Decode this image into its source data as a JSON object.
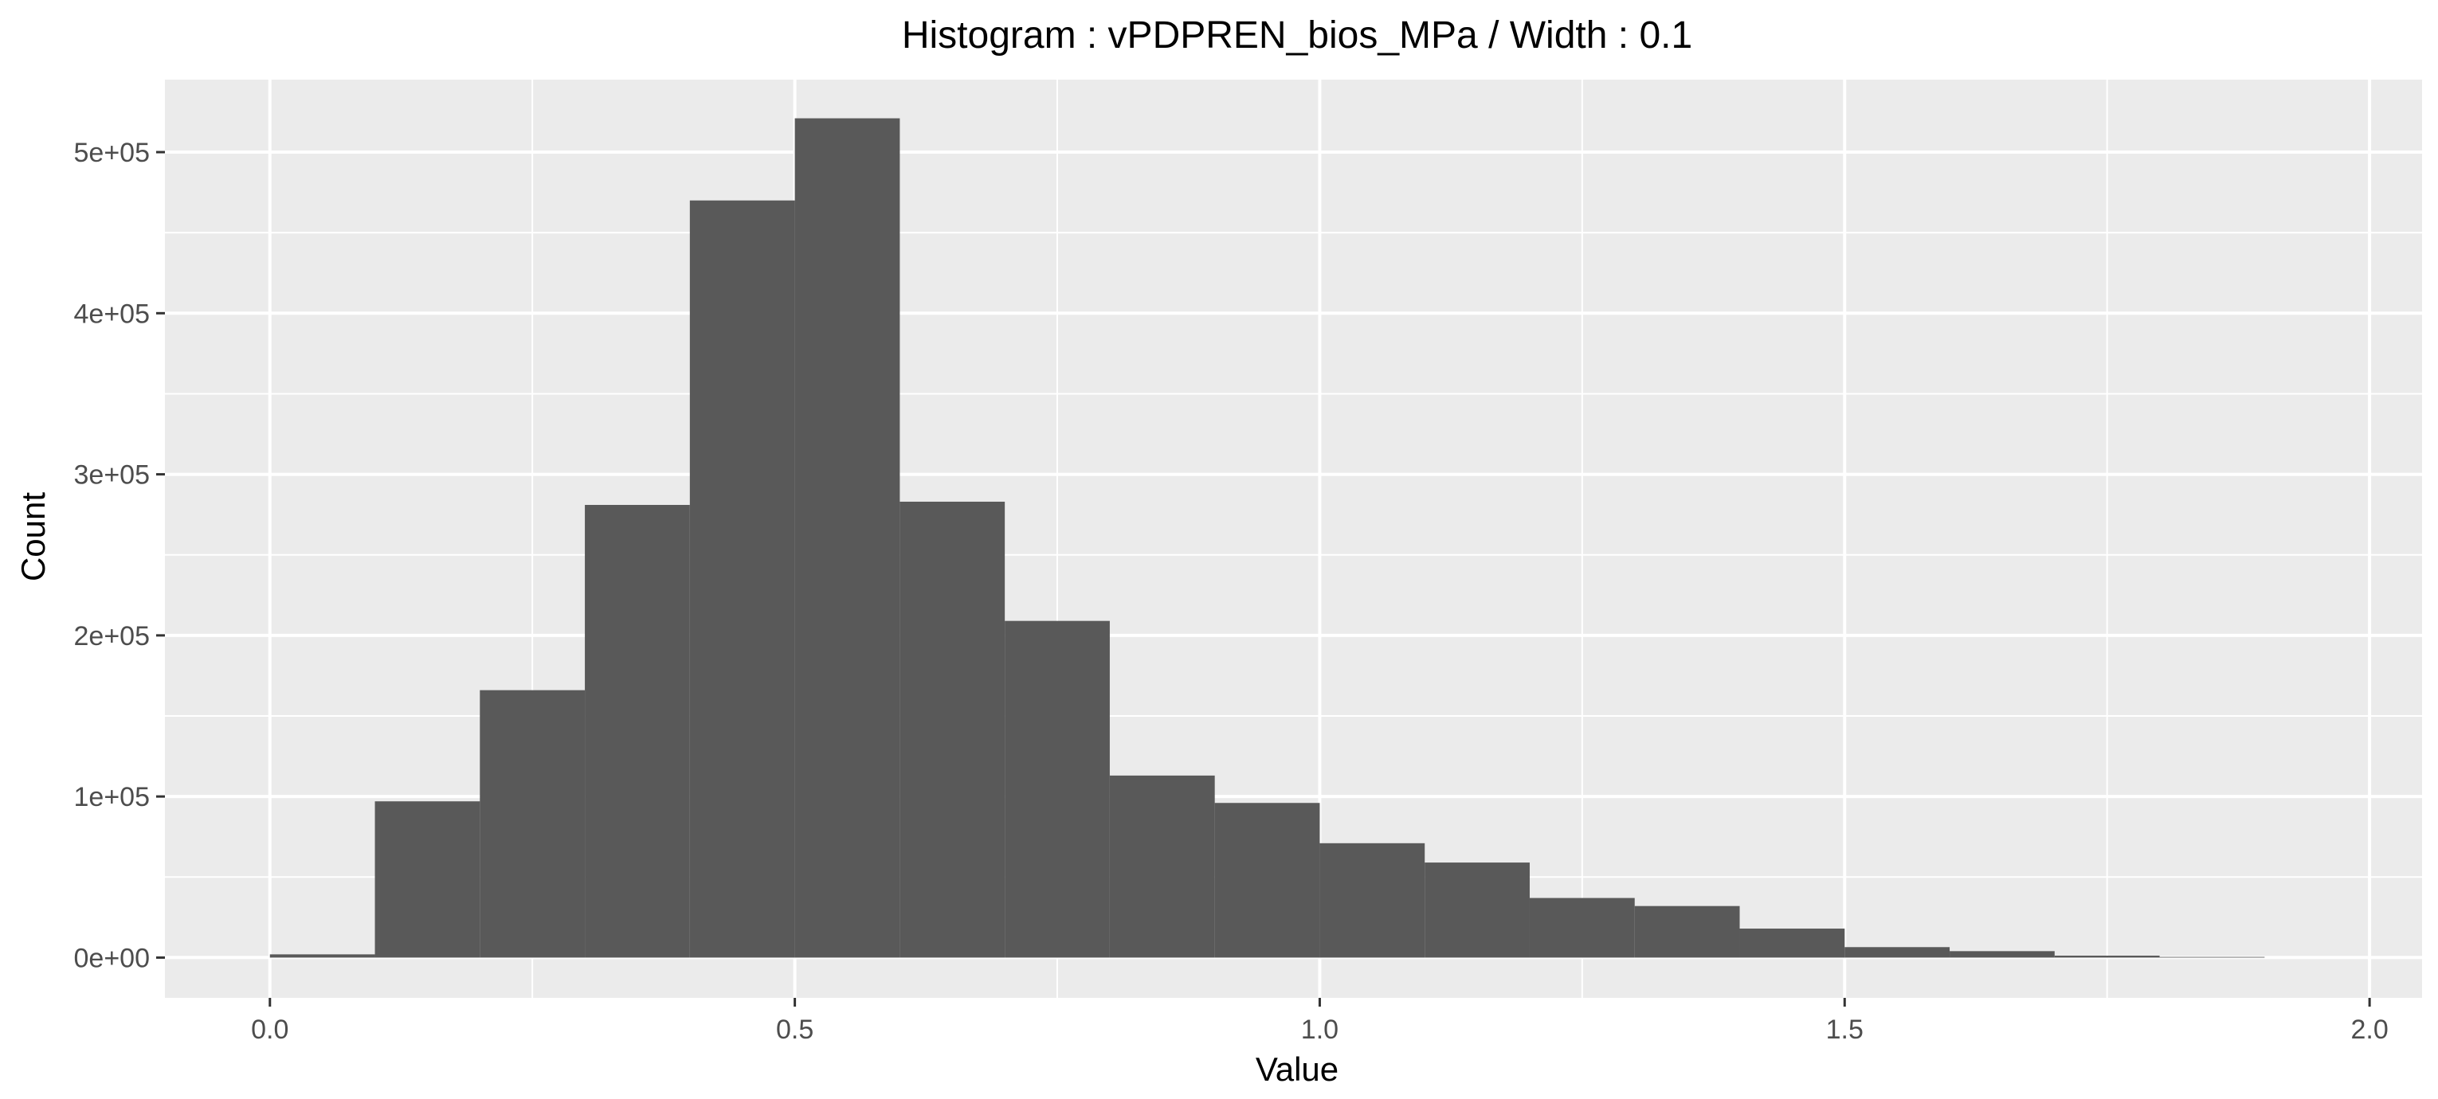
{
  "chart_data": {
    "type": "bar",
    "title": "Histogram : vPDPREN_bios_MPa / Width : 0.1",
    "xlabel": "Value",
    "ylabel": "Count",
    "bin_width": 0.1,
    "bins": [
      {
        "start": 0.0,
        "end": 0.1,
        "count": 2000
      },
      {
        "start": 0.1,
        "end": 0.2,
        "count": 97000
      },
      {
        "start": 0.2,
        "end": 0.3,
        "count": 166000
      },
      {
        "start": 0.3,
        "end": 0.4,
        "count": 281000
      },
      {
        "start": 0.4,
        "end": 0.5,
        "count": 470000
      },
      {
        "start": 0.5,
        "end": 0.6,
        "count": 521000
      },
      {
        "start": 0.6,
        "end": 0.7,
        "count": 283000
      },
      {
        "start": 0.7,
        "end": 0.8,
        "count": 209000
      },
      {
        "start": 0.8,
        "end": 0.9,
        "count": 113000
      },
      {
        "start": 0.9,
        "end": 1.0,
        "count": 96000
      },
      {
        "start": 1.0,
        "end": 1.1,
        "count": 71000
      },
      {
        "start": 1.1,
        "end": 1.2,
        "count": 59000
      },
      {
        "start": 1.2,
        "end": 1.3,
        "count": 37000
      },
      {
        "start": 1.3,
        "end": 1.4,
        "count": 32000
      },
      {
        "start": 1.4,
        "end": 1.5,
        "count": 18000
      },
      {
        "start": 1.5,
        "end": 1.6,
        "count": 6500
      },
      {
        "start": 1.6,
        "end": 1.7,
        "count": 4000
      },
      {
        "start": 1.7,
        "end": 1.8,
        "count": 1200
      },
      {
        "start": 1.8,
        "end": 1.9,
        "count": 400
      }
    ],
    "xlim": [
      -0.1,
      2.05
    ],
    "ylim": [
      -25000,
      545000
    ],
    "x_ticks": [
      0.0,
      0.5,
      1.0,
      1.5,
      2.0
    ],
    "x_tick_labels": [
      "0.0",
      "0.5",
      "1.0",
      "1.5",
      "2.0"
    ],
    "y_ticks": [
      0,
      100000,
      200000,
      300000,
      400000,
      500000
    ],
    "y_tick_labels": [
      "0e+00",
      "1e+05",
      "2e+05",
      "3e+05",
      "4e+05",
      "5e+05"
    ],
    "grid": true,
    "colors": {
      "bar": "#595959",
      "panel": "#EBEBEB",
      "grid": "#FFFFFF",
      "tick": "#333333"
    }
  }
}
